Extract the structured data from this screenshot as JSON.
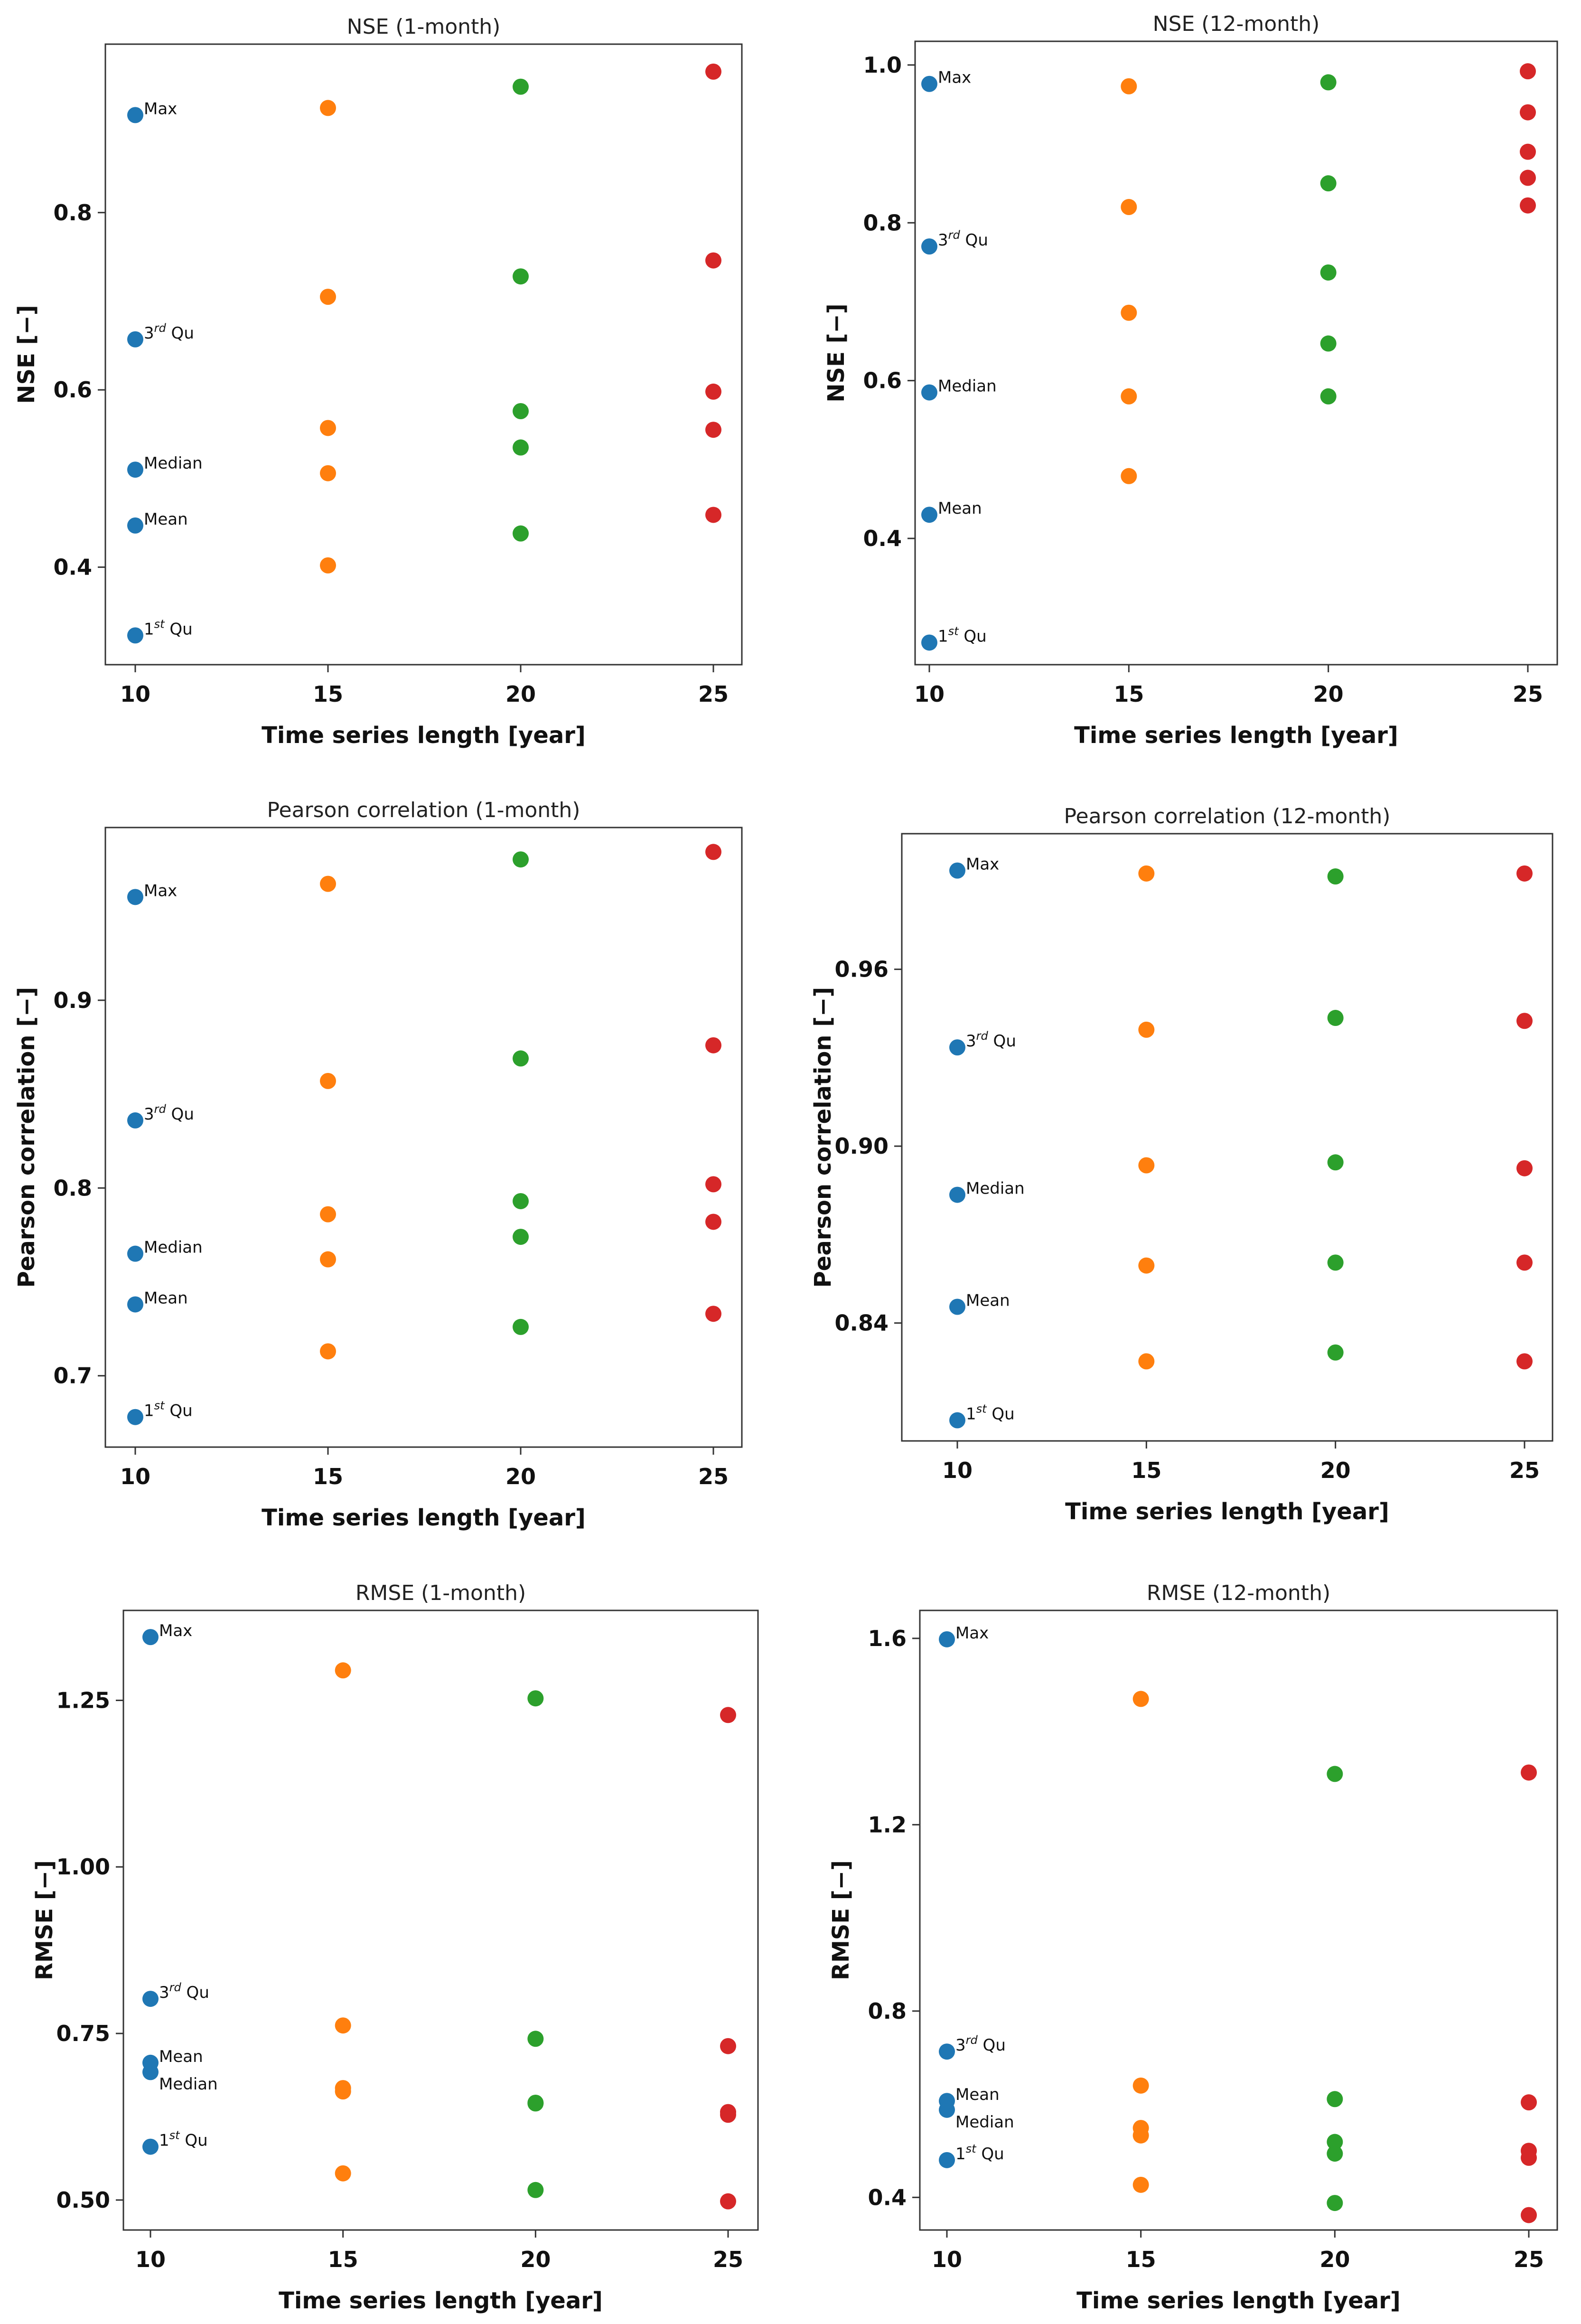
{
  "figure": {
    "series_colors": {
      "10": "#1f77b4",
      "15": "#ff7f0e",
      "20": "#2ca02c",
      "25": "#d62728"
    },
    "stat_names": {
      "max": "Max",
      "q3": "Qu",
      "q3_sup": "rd",
      "q3_base": "3",
      "median": "Median",
      "mean": "Mean",
      "q1": "Qu",
      "q1_sup": "st",
      "q1_base": "1"
    }
  },
  "chart_data": [
    {
      "type": "scatter",
      "title": "NSE (1-month)",
      "xlabel": "Time series length [year]",
      "ylabel": "NSE [−]",
      "x_ticks": [
        "10",
        "15",
        "20",
        "25"
      ],
      "y_ticks": [
        0.4,
        0.6,
        0.8
      ],
      "y_tick_labels": [
        "0.4",
        "0.6",
        "0.8"
      ],
      "ylim": [
        0.29,
        0.99
      ],
      "series": [
        {
          "name": "10",
          "values": {
            "max": 0.91,
            "q3": 0.657,
            "median": 0.51,
            "mean": 0.447,
            "q1": 0.323
          }
        },
        {
          "name": "15",
          "values": {
            "max": 0.918,
            "q3": 0.705,
            "median": 0.557,
            "mean": 0.506,
            "q1": 0.402
          }
        },
        {
          "name": "20",
          "values": {
            "max": 0.942,
            "q3": 0.728,
            "median": 0.576,
            "mean": 0.535,
            "q1": 0.438
          }
        },
        {
          "name": "25",
          "values": {
            "max": 0.959,
            "q3": 0.746,
            "median": 0.598,
            "mean": 0.555,
            "q1": 0.459
          }
        }
      ]
    },
    {
      "type": "scatter",
      "title": "NSE (12-month)",
      "xlabel": "Time series length [year]",
      "ylabel": "NSE [−]",
      "x_ticks": [
        "10",
        "15",
        "20",
        "25"
      ],
      "y_ticks": [
        0.4,
        0.6,
        0.8,
        1.0
      ],
      "y_tick_labels": [
        "0.4",
        "0.6",
        "0.8",
        "1.0"
      ],
      "ylim": [
        0.24,
        1.03
      ],
      "series": [
        {
          "name": "10",
          "values": {
            "max": 0.976,
            "q3": 0.77,
            "median": 0.585,
            "mean": 0.43,
            "q1": 0.268
          }
        },
        {
          "name": "15",
          "values": {
            "max": 0.973,
            "q3": 0.82,
            "median": 0.686,
            "mean": 0.58,
            "q1": 0.479
          }
        },
        {
          "name": "20",
          "values": {
            "max": 0.978,
            "q3": 0.85,
            "median": 0.737,
            "mean": 0.647,
            "q1": 0.58
          }
        },
        {
          "name": "25",
          "values": {
            "max": 0.992,
            "q3": 0.94,
            "median": 0.89,
            "mean": 0.857,
            "q1": 0.822
          }
        }
      ]
    },
    {
      "type": "scatter",
      "title": "Pearson correlation (1-month)",
      "xlabel": "Time series length [year]",
      "ylabel": "Pearson correlation [−]",
      "x_ticks": [
        "10",
        "15",
        "20",
        "25"
      ],
      "y_ticks": [
        0.7,
        0.8,
        0.9
      ],
      "y_tick_labels": [
        "0.7",
        "0.8",
        "0.9"
      ],
      "ylim": [
        0.662,
        0.992
      ],
      "series": [
        {
          "name": "10",
          "values": {
            "max": 0.955,
            "q3": 0.836,
            "median": 0.765,
            "mean": 0.738,
            "q1": 0.678
          }
        },
        {
          "name": "15",
          "values": {
            "max": 0.962,
            "q3": 0.857,
            "median": 0.786,
            "mean": 0.762,
            "q1": 0.713
          }
        },
        {
          "name": "20",
          "values": {
            "max": 0.975,
            "q3": 0.869,
            "median": 0.793,
            "mean": 0.774,
            "q1": 0.726
          }
        },
        {
          "name": "25",
          "values": {
            "max": 0.979,
            "q3": 0.876,
            "median": 0.802,
            "mean": 0.782,
            "q1": 0.733
          }
        }
      ]
    },
    {
      "type": "scatter",
      "title": "Pearson correlation (12-month)",
      "xlabel": "Time series length [year]",
      "ylabel": "Pearson correlation [−]",
      "x_ticks": [
        "10",
        "15",
        "20",
        "25"
      ],
      "y_ticks": [
        0.84,
        0.9,
        0.96
      ],
      "y_tick_labels": [
        "0.84",
        "0.90",
        "0.96"
      ],
      "ylim": [
        0.8,
        1.006
      ],
      "series": [
        {
          "name": "10",
          "values": {
            "max": 0.9935,
            "q3": 0.9335,
            "median": 0.8835,
            "mean": 0.8455,
            "q1": 0.807
          }
        },
        {
          "name": "15",
          "values": {
            "max": 0.9925,
            "q3": 0.9395,
            "median": 0.8935,
            "mean": 0.8595,
            "q1": 0.827
          }
        },
        {
          "name": "20",
          "values": {
            "max": 0.9915,
            "q3": 0.9435,
            "median": 0.8945,
            "mean": 0.8605,
            "q1": 0.83
          }
        },
        {
          "name": "25",
          "values": {
            "max": 0.9925,
            "q3": 0.9425,
            "median": 0.8925,
            "mean": 0.8605,
            "q1": 0.827
          }
        }
      ]
    },
    {
      "type": "scatter",
      "title": "RMSE (1-month)",
      "xlabel": "Time series length [year]",
      "ylabel": "RMSE [−]",
      "x_ticks": [
        "10",
        "15",
        "20",
        "25"
      ],
      "y_ticks": [
        0.5,
        0.75,
        1.0,
        1.25
      ],
      "y_tick_labels": [
        "0.50",
        "0.75",
        "1.00",
        "1.25"
      ],
      "ylim": [
        0.455,
        1.385
      ],
      "series": [
        {
          "name": "10",
          "values": {
            "max": 1.345,
            "q3": 0.802,
            "median": 0.692,
            "mean": 0.706,
            "q1": 0.58
          }
        },
        {
          "name": "15",
          "values": {
            "max": 1.295,
            "q3": 0.762,
            "median": 0.663,
            "mean": 0.668,
            "q1": 0.54
          }
        },
        {
          "name": "20",
          "values": {
            "max": 1.253,
            "q3": 0.742,
            "median": 0.645,
            "mean": 0.646,
            "q1": 0.515
          }
        },
        {
          "name": "25",
          "values": {
            "max": 1.228,
            "q3": 0.731,
            "median": 0.628,
            "mean": 0.632,
            "q1": 0.498
          }
        }
      ]
    },
    {
      "type": "scatter",
      "title": "RMSE (12-month)",
      "xlabel": "Time series length [year]",
      "ylabel": "RMSE [−]",
      "x_ticks": [
        "10",
        "15",
        "20",
        "25"
      ],
      "y_ticks": [
        0.4,
        0.8,
        1.2,
        1.6
      ],
      "y_tick_labels": [
        "0.4",
        "0.8",
        "1.2",
        "1.6"
      ],
      "ylim": [
        0.33,
        1.66
      ],
      "series": [
        {
          "name": "10",
          "values": {
            "max": 1.598,
            "q3": 0.713,
            "median": 0.588,
            "mean": 0.607,
            "q1": 0.48
          }
        },
        {
          "name": "15",
          "values": {
            "max": 1.47,
            "q3": 0.64,
            "median": 0.533,
            "mean": 0.549,
            "q1": 0.427
          }
        },
        {
          "name": "20",
          "values": {
            "max": 1.309,
            "q3": 0.611,
            "median": 0.494,
            "mean": 0.519,
            "q1": 0.388
          }
        },
        {
          "name": "25",
          "values": {
            "max": 1.312,
            "q3": 0.604,
            "median": 0.485,
            "mean": 0.5,
            "q1": 0.362
          }
        }
      ]
    }
  ]
}
